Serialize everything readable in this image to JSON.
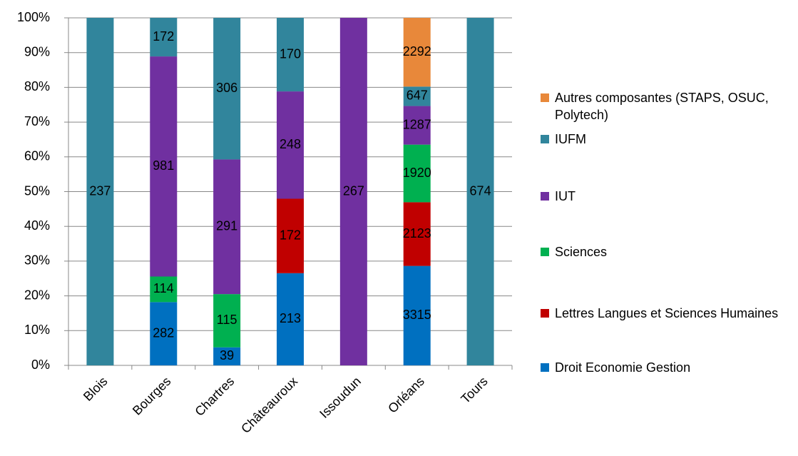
{
  "chart_data": {
    "type": "bar",
    "stacked": "percent",
    "categories": [
      "Blois",
      "Bourges",
      "Chartres",
      "Châteauroux",
      "Issoudun",
      "Orléans",
      "Tours"
    ],
    "series": [
      {
        "name": "Droit Economie Gestion",
        "color": "#0070C0",
        "values": [
          null,
          282,
          39,
          213,
          null,
          3315,
          null
        ]
      },
      {
        "name": "Lettres Langues et Sciences Humaines",
        "color": "#C00000",
        "values": [
          null,
          null,
          null,
          172,
          null,
          2123,
          null
        ]
      },
      {
        "name": "Sciences",
        "color": "#00B050",
        "values": [
          null,
          114,
          115,
          null,
          null,
          1920,
          null
        ]
      },
      {
        "name": "IUT",
        "color": "#7030A0",
        "values": [
          null,
          981,
          291,
          248,
          267,
          1287,
          null
        ]
      },
      {
        "name": "IUFM",
        "color": "#31859C",
        "values": [
          237,
          172,
          306,
          170,
          null,
          647,
          674
        ]
      },
      {
        "name": "Autres composantes (STAPS, OSUC, Polytech)",
        "color": "#E8883A",
        "values": [
          null,
          null,
          null,
          null,
          null,
          2292,
          null
        ]
      }
    ],
    "ylim": [
      0,
      100
    ],
    "yticks": [
      {
        "value": 0,
        "label": "0%"
      },
      {
        "value": 10,
        "label": "10%"
      },
      {
        "value": 20,
        "label": "20%"
      },
      {
        "value": 30,
        "label": "30%"
      },
      {
        "value": 40,
        "label": "40%"
      },
      {
        "value": 50,
        "label": "50%"
      },
      {
        "value": 60,
        "label": "60%"
      },
      {
        "value": 70,
        "label": "70%"
      },
      {
        "value": 80,
        "label": "80%"
      },
      {
        "value": 90,
        "label": "90%"
      },
      {
        "value": 100,
        "label": "100%"
      }
    ],
    "grid": true,
    "legend": "right"
  }
}
